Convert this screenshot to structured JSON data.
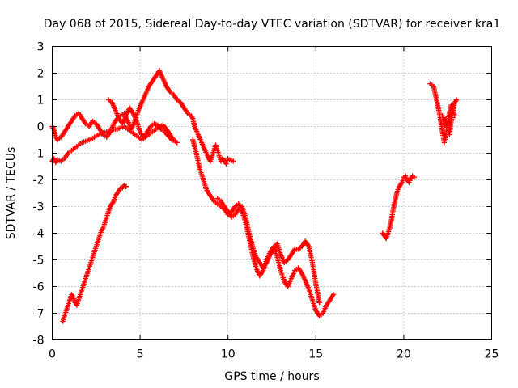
{
  "chart_data": {
    "type": "scatter",
    "title": "Day 068 of 2015, Sidereal Day-to-day VTEC variation (SDTVAR) for receiver kra1",
    "xlabel": "GPS time / hours",
    "ylabel": "SDTVAR / TECUs",
    "xlim": [
      0,
      25
    ],
    "ylim": [
      -8,
      3
    ],
    "xticks": [
      "0",
      "5",
      "10",
      "15",
      "20",
      "25"
    ],
    "yticks": [
      "-8",
      "-7",
      "-6",
      "-5",
      "-4",
      "-3",
      "-2",
      "-1",
      "0",
      "1",
      "2",
      "3"
    ],
    "grid": true,
    "legend": "none",
    "marker": "plus",
    "color": "#ff0000",
    "series": [
      {
        "x": [
          0.0,
          0.1,
          0.2,
          0.3,
          0.5,
          0.7,
          0.9,
          1.1,
          1.3,
          1.5,
          1.7,
          1.9,
          2.1,
          2.3,
          2.5,
          2.7,
          2.9,
          3.1,
          3.3,
          3.5,
          3.7,
          3.9,
          4.1,
          4.3,
          4.5,
          4.7,
          4.9,
          5.1,
          5.3,
          5.5,
          5.7,
          5.9,
          6.1,
          6.3,
          6.5,
          6.7,
          6.9,
          7.1
        ],
        "y": [
          -1.3,
          -1.2,
          -1.35,
          -1.25,
          -1.3,
          -1.2,
          -1.0,
          -0.9,
          -0.8,
          -0.7,
          -0.6,
          -0.55,
          -0.5,
          -0.45,
          -0.35,
          -0.3,
          -0.25,
          -0.2,
          -0.15,
          -0.1,
          -0.1,
          -0.05,
          0.0,
          -0.1,
          -0.2,
          -0.3,
          -0.4,
          -0.5,
          -0.4,
          -0.3,
          -0.2,
          -0.1,
          0.0,
          0.05,
          -0.1,
          -0.3,
          -0.5,
          -0.6
        ]
      },
      {
        "x": [
          0.0,
          0.1,
          0.2,
          0.3,
          0.5,
          0.7,
          0.9,
          1.1,
          1.3,
          1.5,
          1.7,
          1.9,
          2.1,
          2.3,
          2.5,
          2.7,
          2.9,
          3.1,
          3.3,
          3.5,
          3.7,
          3.9,
          4.1,
          4.3,
          4.5,
          4.7,
          4.9,
          5.1,
          5.3,
          5.5,
          5.7,
          5.9,
          6.1,
          6.3,
          6.5,
          6.7,
          6.9,
          7.1,
          7.3,
          7.5,
          7.7,
          7.9,
          8.0,
          8.1,
          8.3,
          8.5,
          8.7,
          8.9,
          9.0,
          9.1,
          9.2,
          9.3,
          9.4,
          9.5,
          9.6,
          9.7,
          9.8,
          9.9,
          10.0,
          10.1,
          10.3
        ],
        "y": [
          0.0,
          -0.1,
          -0.4,
          -0.5,
          -0.4,
          -0.2,
          0.0,
          0.2,
          0.4,
          0.5,
          0.3,
          0.1,
          0.0,
          0.2,
          0.1,
          -0.1,
          -0.3,
          -0.4,
          -0.2,
          0.1,
          0.3,
          0.4,
          0.5,
          0.2,
          -0.1,
          0.2,
          0.6,
          0.9,
          1.2,
          1.5,
          1.7,
          1.9,
          2.1,
          1.8,
          1.5,
          1.3,
          1.2,
          1.0,
          0.9,
          0.7,
          0.5,
          0.4,
          0.3,
          0.0,
          -0.3,
          -0.6,
          -0.9,
          -1.2,
          -1.3,
          -1.1,
          -0.9,
          -0.7,
          -0.9,
          -1.1,
          -1.3,
          -1.2,
          -1.3,
          -1.4,
          -1.2,
          -1.25,
          -1.3
        ]
      },
      {
        "x": [
          0.6,
          0.7,
          0.8,
          0.9,
          1.0,
          1.1,
          1.2,
          1.3,
          1.4,
          1.5,
          1.6,
          1.7,
          1.8,
          1.9,
          2.0,
          2.1,
          2.2,
          2.3,
          2.4,
          2.5,
          2.6,
          2.7,
          2.8,
          2.9,
          3.0,
          3.1,
          3.2,
          3.3,
          3.4,
          3.5,
          3.6,
          3.7,
          3.8,
          3.9,
          4.0,
          4.1,
          4.2
        ],
        "y": [
          -7.3,
          -7.1,
          -6.9,
          -6.7,
          -6.5,
          -6.3,
          -6.4,
          -6.6,
          -6.7,
          -6.5,
          -6.3,
          -6.1,
          -5.9,
          -5.7,
          -5.5,
          -5.3,
          -5.1,
          -4.9,
          -4.7,
          -4.5,
          -4.3,
          -4.1,
          -3.9,
          -3.8,
          -3.6,
          -3.4,
          -3.2,
          -3.0,
          -2.9,
          -2.8,
          -2.6,
          -2.5,
          -2.4,
          -2.3,
          -2.3,
          -2.2,
          -2.25
        ]
      },
      {
        "x": [
          3.2,
          3.4,
          3.6,
          3.8,
          4.0,
          4.2,
          4.4,
          4.6,
          4.8,
          5.0,
          5.2,
          5.4,
          5.6,
          5.8,
          6.0,
          6.2,
          6.4,
          6.6,
          6.8,
          7.0
        ],
        "y": [
          1.0,
          0.9,
          0.6,
          0.3,
          0.1,
          0.4,
          0.7,
          0.5,
          0.2,
          -0.2,
          -0.4,
          -0.2,
          0.0,
          0.1,
          0.05,
          -0.1,
          -0.2,
          -0.35,
          -0.5,
          -0.55
        ]
      },
      {
        "x": [
          8.0,
          8.2,
          8.4,
          8.6,
          8.8,
          9.0,
          9.2,
          9.4,
          9.6,
          9.8,
          10.0,
          10.2,
          10.4,
          10.6,
          10.8,
          11.0,
          11.2,
          11.4,
          11.6,
          11.8,
          12.0,
          12.2,
          12.4,
          12.6,
          12.8,
          13.0,
          13.2,
          13.4,
          13.6,
          13.8,
          14.0,
          14.2,
          14.4,
          14.6,
          14.8,
          15.0,
          15.2,
          15.4,
          15.6,
          15.8,
          16.0
        ],
        "y": [
          -0.5,
          -1.0,
          -1.6,
          -2.0,
          -2.4,
          -2.6,
          -2.8,
          -2.9,
          -3.0,
          -3.1,
          -3.3,
          -3.2,
          -3.0,
          -2.9,
          -3.2,
          -3.6,
          -4.2,
          -4.8,
          -5.3,
          -5.6,
          -5.4,
          -5.0,
          -4.7,
          -4.5,
          -4.9,
          -5.4,
          -5.8,
          -6.0,
          -5.7,
          -5.4,
          -5.3,
          -5.5,
          -5.8,
          -6.1,
          -6.5,
          -6.9,
          -7.1,
          -7.0,
          -6.7,
          -6.5,
          -6.3
        ]
      },
      {
        "x": [
          9.4,
          9.6,
          9.8,
          10.0,
          10.2,
          10.4,
          10.6,
          10.8,
          11.0,
          11.2,
          11.4,
          11.6,
          11.8,
          12.0,
          12.2,
          12.4,
          12.6,
          12.8,
          13.0,
          13.2,
          13.4,
          13.6,
          13.8,
          14.0,
          14.2,
          14.4,
          14.6,
          14.8,
          15.0,
          15.2
        ],
        "y": [
          -2.7,
          -2.8,
          -3.0,
          -3.2,
          -3.4,
          -3.3,
          -3.1,
          -3.0,
          -3.4,
          -4.0,
          -4.5,
          -4.9,
          -5.1,
          -5.3,
          -5.1,
          -4.8,
          -4.6,
          -4.4,
          -4.8,
          -5.1,
          -5.0,
          -4.8,
          -4.6,
          -4.6,
          -4.5,
          -4.3,
          -4.5,
          -5.1,
          -5.9,
          -6.6
        ]
      },
      {
        "x": [
          18.8,
          18.9,
          19.0,
          19.1,
          19.2,
          19.3,
          19.4,
          19.5,
          19.6,
          19.7,
          19.8,
          19.9,
          20.0,
          20.1,
          20.2,
          20.3,
          20.4,
          20.5,
          20.6
        ],
        "y": [
          -4.0,
          -4.1,
          -4.2,
          -4.0,
          -3.8,
          -3.5,
          -3.1,
          -2.8,
          -2.5,
          -2.3,
          -2.2,
          -2.1,
          -1.9,
          -1.85,
          -2.0,
          -2.1,
          -1.95,
          -1.85,
          -1.9
        ]
      },
      {
        "x": [
          21.5,
          21.6,
          21.7,
          21.8,
          21.9,
          22.0,
          22.1,
          22.2,
          22.3,
          22.4,
          22.5,
          22.6,
          22.7,
          22.8,
          22.9,
          23.0
        ],
        "y": [
          1.6,
          1.55,
          1.5,
          1.2,
          0.9,
          0.6,
          0.2,
          -0.2,
          -0.6,
          -0.3,
          0.1,
          0.5,
          0.8,
          0.6,
          0.9,
          1.0
        ]
      },
      {
        "x": [
          22.2,
          22.3,
          22.4,
          22.5,
          22.6,
          22.7,
          22.8,
          22.9
        ],
        "y": [
          0.4,
          0.0,
          0.3,
          -0.1,
          -0.3,
          0.2,
          0.6,
          0.4
        ]
      }
    ]
  }
}
